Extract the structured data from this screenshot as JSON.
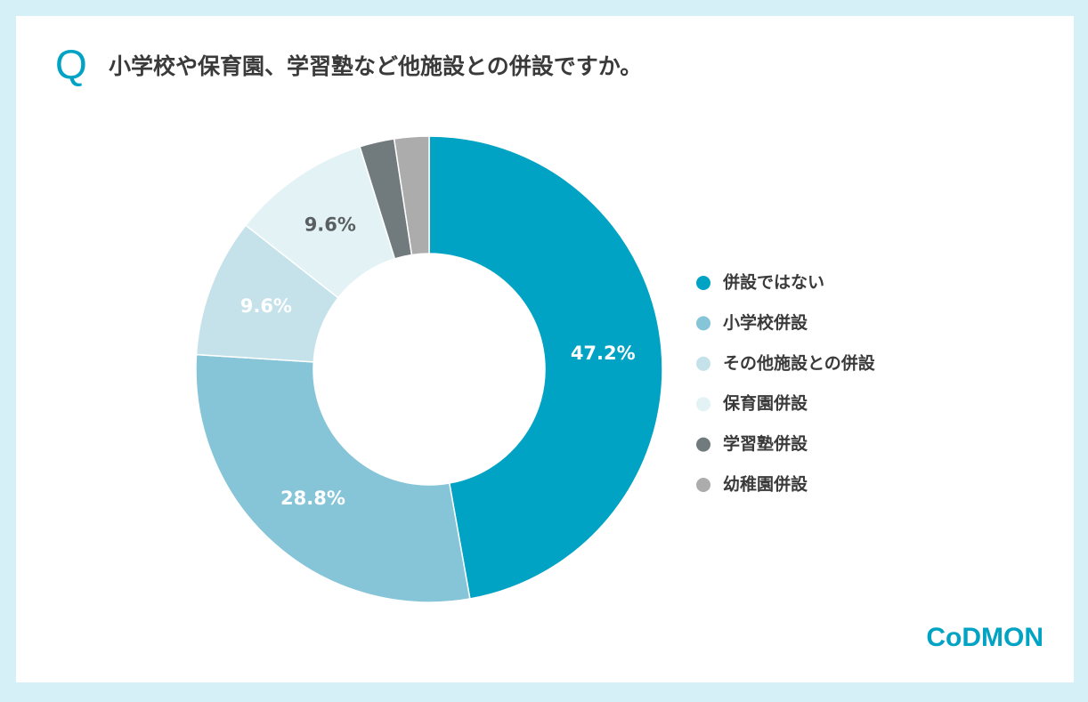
{
  "chart_data": {
    "type": "donut",
    "question_mark": "Q",
    "title": "小学校や保育園、学習塾など他施設との併設ですか。",
    "categories": [
      "併設ではない",
      "小学校併設",
      "その他施設との併設",
      "保育園併設",
      "学習塾併設",
      "幼稚園併設"
    ],
    "values": [
      47.2,
      28.8,
      9.6,
      9.6,
      2.4,
      2.4
    ],
    "value_labels": [
      "47.2%",
      "28.8%",
      "9.6%",
      "9.6%",
      null,
      null
    ],
    "colors": [
      "#00a3c4",
      "#86c5d8",
      "#c5e2ea",
      "#e3f2f5",
      "#717a7d",
      "#acacac"
    ],
    "label_colors": [
      "#ffffff",
      "#ffffff",
      "#ffffff",
      "#5a5f61",
      null,
      null
    ],
    "legend": "right",
    "logo": "CoDMON"
  }
}
